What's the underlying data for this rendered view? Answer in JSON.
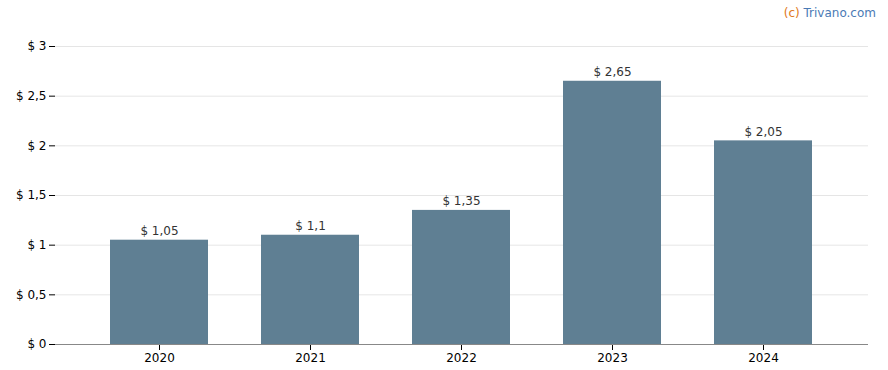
{
  "chart_data": {
    "type": "bar",
    "categories": [
      "2020",
      "2021",
      "2022",
      "2023",
      "2024"
    ],
    "values": [
      1.05,
      1.1,
      1.35,
      2.65,
      2.05
    ],
    "value_labels": [
      "$ 1,05",
      "$ 1,1",
      "$ 1,35",
      "$ 2,65",
      "$ 2,05"
    ],
    "data_labels": true,
    "color": "#5f7f93",
    "ylim": [
      0,
      3
    ],
    "yticks": [
      {
        "value": 0,
        "label": "$ 0"
      },
      {
        "value": 0.5,
        "label": "$ 0,5"
      },
      {
        "value": 1.0,
        "label": "$ 1"
      },
      {
        "value": 1.5,
        "label": "$ 1,5"
      },
      {
        "value": 2.0,
        "label": "$ 2"
      },
      {
        "value": 2.5,
        "label": "$ 2,5"
      },
      {
        "value": 3.0,
        "label": "$ 3"
      }
    ],
    "grid": true,
    "annotations": [
      {
        "text": "(c)",
        "color": "#e07820"
      },
      {
        "text": " Trivano.com",
        "color": "#4a7ab5"
      }
    ]
  }
}
